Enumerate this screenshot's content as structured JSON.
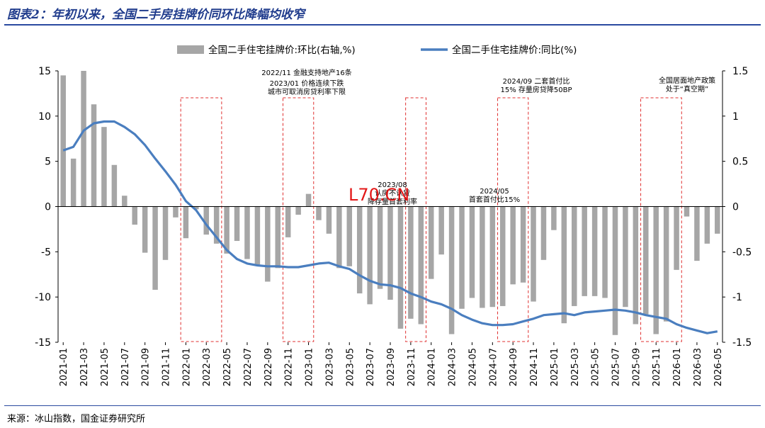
{
  "figure_title": "图表2：年初以来，全国二手房挂牌价同环比降幅均收窄",
  "source": "来源：冰山指数，国金证券研究所",
  "watermark": "L70.CN",
  "colors": {
    "bar": "#a6a6a6",
    "line": "#4a7ebf",
    "box": "#e03030",
    "title": "#1f3b8c"
  },
  "chart_data": {
    "type": "bar+line",
    "legend_position": "top",
    "grid": false,
    "x": [
      "2021-01",
      "2021-02",
      "2021-03",
      "2021-04",
      "2021-05",
      "2021-06",
      "2021-07",
      "2021-08",
      "2021-09",
      "2021-10",
      "2021-11",
      "2021-12",
      "2022-01",
      "2022-02",
      "2022-03",
      "2022-04",
      "2022-05",
      "2022-06",
      "2022-07",
      "2022-08",
      "2022-09",
      "2022-10",
      "2022-11",
      "2022-12",
      "2023-01",
      "2023-02",
      "2023-03",
      "2023-04",
      "2023-05",
      "2023-06",
      "2023-07",
      "2023-08",
      "2023-09",
      "2023-10",
      "2023-11",
      "2023-12",
      "2024-01",
      "2024-02",
      "2024-03",
      "2024-04",
      "2024-05",
      "2024-06",
      "2024-07",
      "2024-08",
      "2024-09",
      "2024-10",
      "2024-11",
      "2024-12",
      "2025-01",
      "2025-02",
      "2025-03",
      "2025-04",
      "2025-05",
      "2025-06",
      "2025-07",
      "2025-08",
      "2025-09",
      "2025-10",
      "2025-11",
      "2025-12",
      "2026-01",
      "2026-02",
      "2026-03",
      "2026-04",
      "2026-05"
    ],
    "x_tick_labels": [
      "2021-01",
      "2021-03",
      "2021-05",
      "2021-07",
      "2021-09",
      "2021-11",
      "2022-01",
      "2022-03",
      "2022-05",
      "2022-07",
      "2022-09",
      "2022-11",
      "2023-01",
      "2023-03",
      "2023-05",
      "2023-07",
      "2023-09",
      "2023-11",
      "2024-01",
      "2024-03",
      "2024-05",
      "2024-07",
      "2024-09",
      "2024-11",
      "2025-01",
      "2025-03",
      "2025-05",
      "2025-07",
      "2025-09",
      "2025-11",
      "2026-01",
      "2026-03",
      "2026-05"
    ],
    "series": [
      {
        "name": "全国二手住宅挂牌价:环比(右轴,%)",
        "type": "bar",
        "axis": "right",
        "values": [
          1.45,
          0.53,
          1.5,
          1.13,
          0.88,
          0.46,
          0.12,
          -0.2,
          -0.51,
          -0.92,
          -0.59,
          -0.12,
          -0.35,
          -0.03,
          -0.31,
          -0.41,
          -0.52,
          -0.38,
          -0.58,
          -0.64,
          -0.83,
          -0.68,
          -0.34,
          -0.09,
          0.14,
          -0.15,
          -0.3,
          -0.68,
          -0.66,
          -0.96,
          -1.08,
          -0.91,
          -1.03,
          -1.35,
          -1.24,
          -1.3,
          -0.8,
          -0.53,
          -1.41,
          -1.13,
          -1.01,
          -1.12,
          -1.11,
          -1.1,
          -0.86,
          -0.84,
          -1.05,
          -0.59,
          -0.26,
          -1.29,
          -1.1,
          -0.99,
          -0.99,
          -1.01,
          -1.42,
          -1.11,
          -1.3,
          -1.19,
          -1.41,
          -1.27,
          -0.7,
          -0.11,
          -0.6,
          -0.41,
          -0.3
        ]
      },
      {
        "name": "全国二手住宅挂牌价:同比(%)",
        "type": "line",
        "axis": "left",
        "values": [
          6.2,
          6.6,
          8.4,
          9.2,
          9.4,
          9.4,
          8.8,
          8.0,
          6.8,
          5.3,
          3.9,
          2.4,
          0.6,
          -0.4,
          -2.0,
          -3.4,
          -4.8,
          -5.8,
          -6.3,
          -6.5,
          -6.6,
          -6.6,
          -6.7,
          -6.7,
          -6.5,
          -6.3,
          -6.2,
          -6.6,
          -6.9,
          -7.6,
          -8.2,
          -8.6,
          -8.7,
          -9.0,
          -9.6,
          -10.0,
          -10.5,
          -10.8,
          -11.3,
          -12.0,
          -12.5,
          -12.9,
          -13.1,
          -13.1,
          -13.0,
          -12.7,
          -12.4,
          -12.0,
          -11.9,
          -11.8,
          -12.0,
          -11.7,
          -11.6,
          -11.5,
          -11.4,
          -11.5,
          -11.7,
          -12.0,
          -12.2,
          -12.4,
          -13.0,
          -13.4,
          -13.7,
          -14.0,
          -13.8
        ]
      }
    ],
    "ylim_left": [
      -15,
      15
    ],
    "ylim_right": [
      -1.5,
      1.5
    ],
    "left_ticks": [
      "15",
      "10",
      "5",
      "0",
      "-5",
      "-10",
      "-15"
    ],
    "right_ticks": [
      "1.5",
      "1",
      "0.5",
      "0",
      "-0.5",
      "-1",
      "-1.5"
    ],
    "annotations": [
      {
        "lines": [
          "2022/11 金融支持地产16条"
        ]
      },
      {
        "lines": [
          "2023/01 价格连续下跌",
          "城市可取消房贷利率下限"
        ]
      },
      {
        "lines": [
          "2023/08",
          "认房不认贷",
          "降存量首套利率"
        ]
      },
      {
        "lines": [
          "2024/05",
          "首套首付比15%"
        ]
      },
      {
        "lines": [
          "2024/09 二套首付比",
          "15% 存量房贷降50BP"
        ]
      },
      {
        "lines": [
          "全国居面地产政策",
          "处于“真空期”"
        ]
      }
    ]
  }
}
